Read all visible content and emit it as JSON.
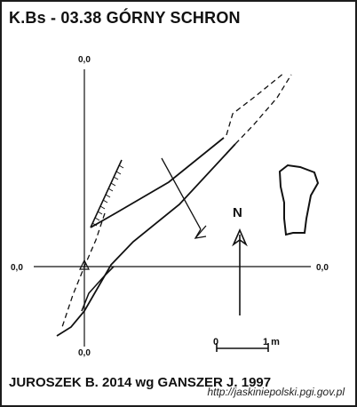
{
  "title": "K.Bs - 03.38  GÓRNY SCHRON",
  "axes": {
    "top_label": "0,0",
    "left_label": "0,0",
    "right_label": "0,0",
    "bottom_label": "0,0"
  },
  "north_arrow": {
    "label": "N"
  },
  "scale_bar": {
    "start_label": "0",
    "end_label": "1 m"
  },
  "credit": "JUROSZEK B. 2014 wg GANSZER J. 1997",
  "source_url": "http://jaskiniepolski.pgi.gov.pl"
}
